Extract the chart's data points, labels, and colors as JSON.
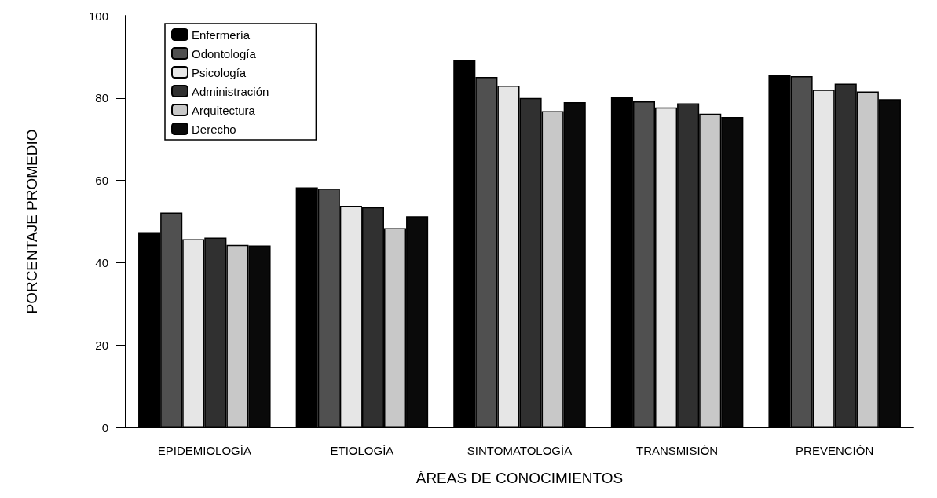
{
  "chart_data": {
    "type": "bar",
    "xlabel": "ÁREAS DE CONOCIMIENTOS",
    "ylabel": "PORCENTAJE PROMEDIO",
    "categories": [
      "EPIDEMIOLOGÍA",
      "ETIOLOGÍA",
      "SINTOMATOLOGÍA",
      "TRANSMISIÓN",
      "PREVENCIÓN"
    ],
    "series": [
      {
        "name": "Enfermería",
        "color": "#000000",
        "values": [
          47.4,
          58.3,
          89.1,
          80.3,
          85.5
        ]
      },
      {
        "name": "Odontología",
        "color": "#505050",
        "values": [
          52.2,
          58.0,
          85.1,
          79.2,
          85.3
        ]
      },
      {
        "name": "Psicología",
        "color": "#e6e6e6",
        "values": [
          45.7,
          53.8,
          83.0,
          77.7,
          82.0
        ]
      },
      {
        "name": "Administración",
        "color": "#303030",
        "values": [
          46.1,
          53.5,
          80.0,
          78.7,
          83.5
        ]
      },
      {
        "name": "Arquitectura",
        "color": "#c8c8c8",
        "values": [
          44.3,
          48.4,
          76.8,
          76.2,
          81.6
        ]
      },
      {
        "name": "Derecho",
        "color": "#0a0a0a",
        "values": [
          44.2,
          51.3,
          79.0,
          75.4,
          79.7
        ]
      }
    ],
    "ylim": [
      0,
      100
    ],
    "yticks": [
      0,
      20,
      40,
      60,
      80,
      100
    ],
    "grid": false,
    "legend": "top left"
  }
}
